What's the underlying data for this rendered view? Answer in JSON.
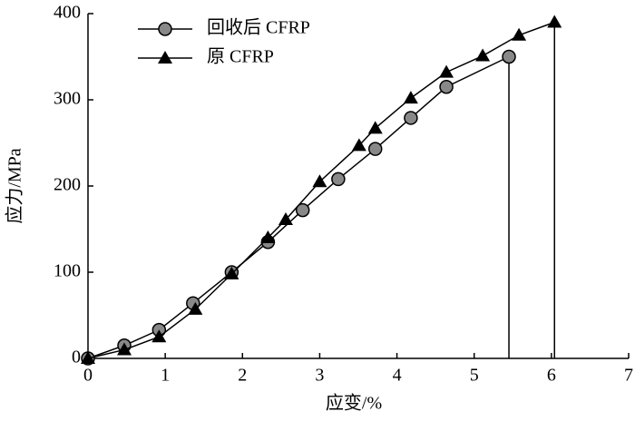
{
  "chart_data": {
    "type": "line",
    "x_label": "应变/%",
    "y_label": "应力/MPa",
    "xlim": [
      0,
      7
    ],
    "xticks": [
      0,
      1,
      2,
      3,
      4,
      5,
      6,
      7
    ],
    "ylim": [
      0,
      400
    ],
    "yticks": [
      0,
      100,
      200,
      300,
      400
    ],
    "legend": "top-left",
    "grid": false,
    "series": [
      {
        "name": "回收后 CFRP",
        "marker": "circle",
        "color": "#000000",
        "x": [
          0,
          0.47,
          0.92,
          1.36,
          1.86,
          2.33,
          2.78,
          3.24,
          3.72,
          4.18,
          4.64,
          5.45
        ],
        "values": [
          0,
          15,
          33,
          64,
          100,
          135,
          172,
          208,
          243,
          279,
          315,
          350
        ]
      },
      {
        "name": "原 CFRP",
        "marker": "triangle",
        "color": "#000000",
        "x": [
          0,
          0.47,
          0.92,
          1.39,
          1.86,
          2.33,
          2.56,
          3.0,
          3.51,
          3.72,
          4.18,
          4.64,
          5.11,
          5.58,
          6.04
        ],
        "values": [
          0,
          10,
          25,
          57,
          98,
          140,
          161,
          205,
          247,
          267,
          302,
          332,
          351,
          375,
          390
        ]
      }
    ]
  }
}
